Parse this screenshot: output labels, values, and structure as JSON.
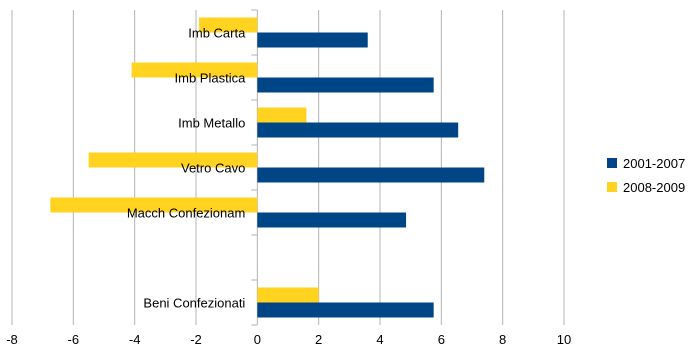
{
  "chart_data": {
    "type": "bar",
    "orientation": "horizontal",
    "categories": [
      "Imb Carta",
      "Imb Plastica",
      "Imb Metallo",
      "Vetro Cavo",
      "Macch Confezionam",
      "",
      "Beni Confezionati"
    ],
    "series": [
      {
        "name": "2001-2007",
        "color": "#004586",
        "values": [
          3.6,
          5.75,
          6.55,
          7.4,
          4.85,
          null,
          5.75
        ]
      },
      {
        "name": "2008-2009",
        "color": "#ffd320",
        "values": [
          -1.9,
          -4.1,
          1.6,
          -5.5,
          -6.75,
          null,
          2.0
        ]
      }
    ],
    "xlim": [
      -8,
      10
    ],
    "xticks": [
      "-8",
      "-6",
      "-4",
      "-2",
      "0",
      "2",
      "4",
      "6",
      "8",
      "10"
    ],
    "grid": true,
    "legend": "right"
  }
}
